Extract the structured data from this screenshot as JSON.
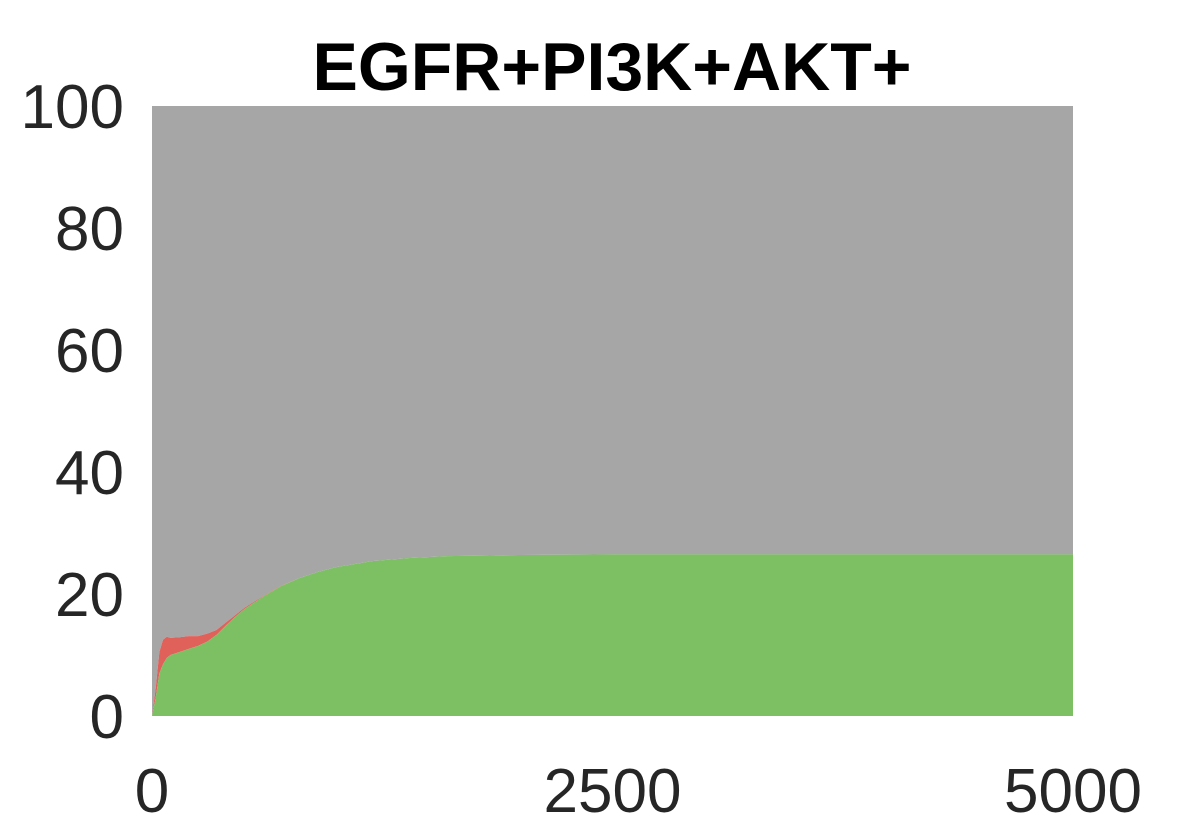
{
  "chart_data": {
    "type": "area",
    "stacked": true,
    "title": "EGFR+PI3K+AKT+",
    "xlabel": "",
    "ylabel": "",
    "xlim": [
      0,
      5000
    ],
    "ylim": [
      0,
      100
    ],
    "xticks": [
      "0",
      "2500",
      "5000"
    ],
    "yticks": [
      "0",
      "20",
      "40",
      "60",
      "80",
      "100"
    ],
    "grid": false,
    "legend": "none",
    "colors": {
      "green": "#7cc063",
      "red": "#e0605a",
      "gray": "#a6a6a6"
    },
    "x": [
      0,
      20,
      40,
      60,
      80,
      100,
      150,
      200,
      250,
      300,
      350,
      400,
      450,
      500,
      600,
      700,
      800,
      900,
      1000,
      1200,
      1400,
      1600,
      1800,
      2000,
      2500,
      3000,
      3500,
      4000,
      4500,
      5000
    ],
    "series": [
      {
        "values": [
          0,
          3,
          7,
          8.5,
          9.5,
          10,
          10.5,
          11,
          11.5,
          12.2,
          13.3,
          14.8,
          16.2,
          17.5,
          19.5,
          21.3,
          22.6,
          23.6,
          24.4,
          25.4,
          25.9,
          26.2,
          26.3,
          26.4,
          26.5,
          26.5,
          26.5,
          26.5,
          26.5,
          26.5
        ]
      },
      {
        "values": [
          0,
          1.5,
          3.5,
          4,
          3.5,
          2.8,
          2.4,
          2.1,
          1.6,
          1.3,
          0.8,
          0.5,
          0.3,
          0.2,
          0.1,
          0.05,
          0,
          0,
          0,
          0,
          0,
          0,
          0,
          0,
          0,
          0,
          0,
          0,
          0,
          0
        ]
      },
      {
        "values": [
          100,
          95.5,
          89.5,
          87.5,
          87,
          87.2,
          87.1,
          86.9,
          86.9,
          86.5,
          85.9,
          84.7,
          83.5,
          82.3,
          80.4,
          78.65,
          77.4,
          76.4,
          75.6,
          74.6,
          74.1,
          73.8,
          73.7,
          73.6,
          73.5,
          73.5,
          73.5,
          73.5,
          73.5,
          73.5
        ]
      }
    ]
  }
}
